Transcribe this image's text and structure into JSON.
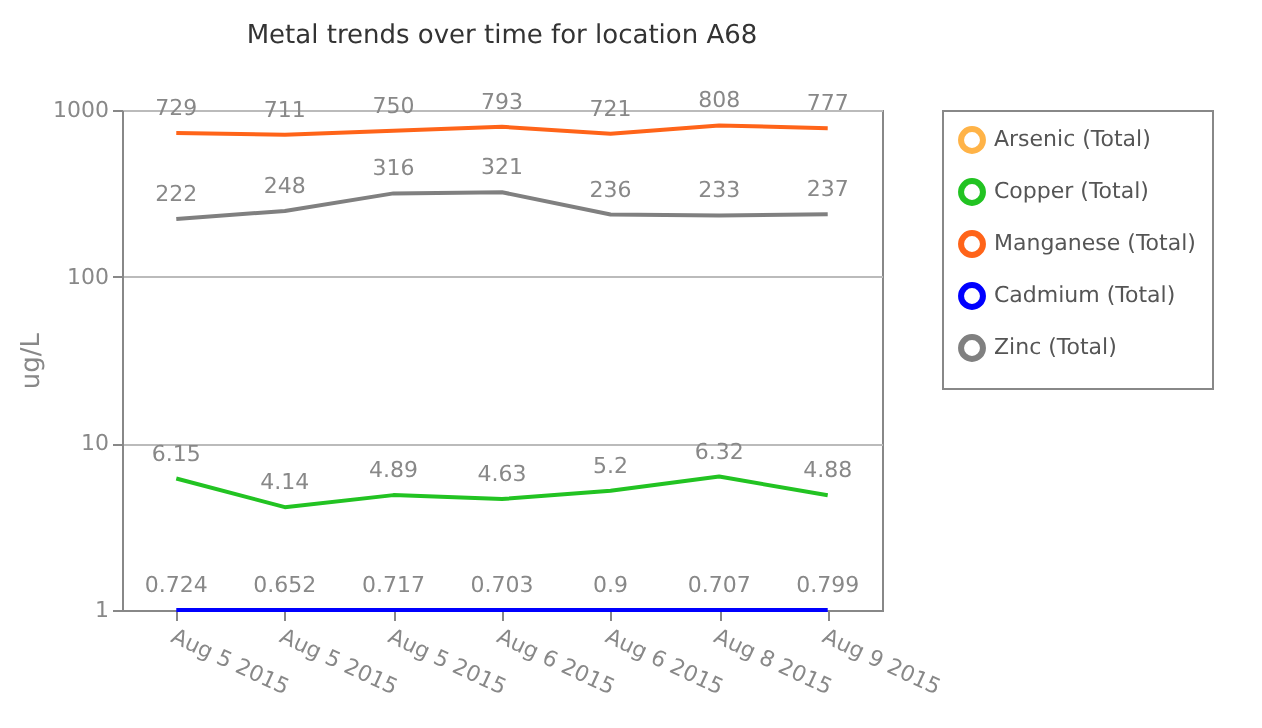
{
  "chart_data": {
    "type": "line",
    "title": "Metal trends over time for location A68",
    "ylabel": "ug/L",
    "categories": [
      "Aug  5 2015",
      "Aug  5 2015",
      "Aug  5 2015",
      "Aug  6 2015",
      "Aug  6 2015",
      "Aug  8 2015",
      "Aug  9 2015"
    ],
    "series": [
      {
        "name": "Arsenic (Total)",
        "color": "#ffb347",
        "values": [
          null,
          null,
          null,
          null,
          null,
          null,
          null
        ],
        "value_labels": [
          "0.724",
          "0.652",
          "0.717",
          "0.703",
          "0.9",
          "0.707",
          "0.799"
        ]
      },
      {
        "name": "Copper (Total)",
        "color": "#22c322",
        "values": [
          6.15,
          4.14,
          4.89,
          4.63,
          5.2,
          6.32,
          4.88
        ]
      },
      {
        "name": "Manganese (Total)",
        "color": "#ff6419",
        "values": [
          729,
          711,
          750,
          793,
          721,
          808,
          777
        ]
      },
      {
        "name": "Cadmium (Total)",
        "color": "#0000ff",
        "values": [
          1,
          1,
          1,
          1,
          1,
          1,
          1
        ],
        "value_labels": [
          null,
          null,
          null,
          null,
          null,
          null,
          null
        ]
      },
      {
        "name": "Zinc (Total)",
        "color": "#808080",
        "values": [
          222,
          248,
          316,
          321,
          236,
          233,
          237
        ]
      }
    ],
    "log": true,
    "ylim": [
      1,
      1000
    ],
    "yticks": [
      1,
      10,
      100,
      {
        "value": 1000,
        "label": "1000"
      }
    ],
    "grid": "y",
    "legend": "right",
    "data_labels": true,
    "marker": "none"
  }
}
